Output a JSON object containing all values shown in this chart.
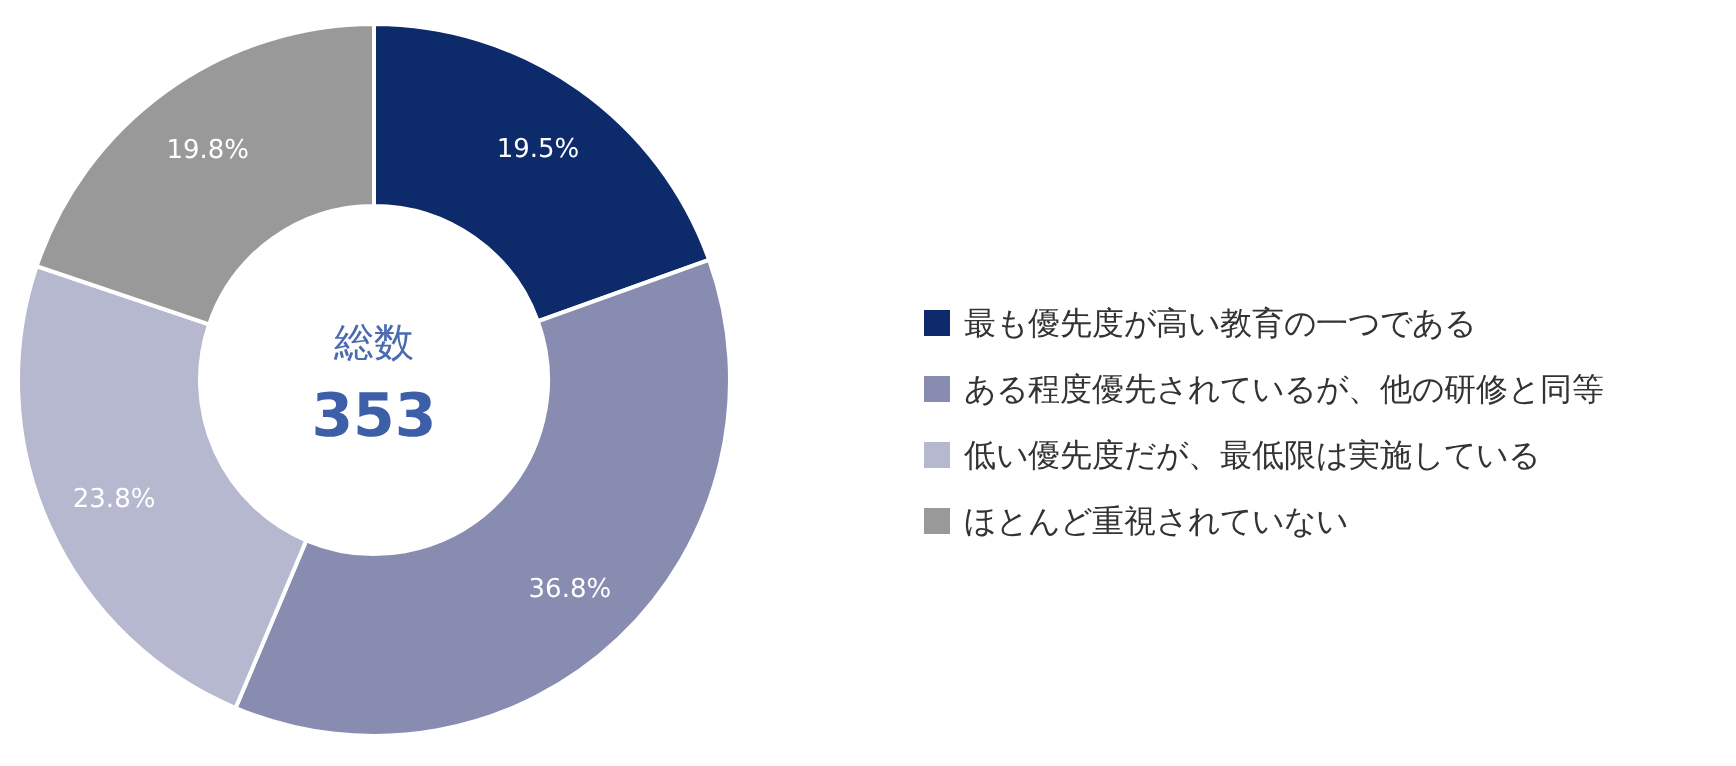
{
  "chart_data": {
    "type": "donut",
    "categories": [
      "最も優先度が高い教育の一つである",
      "ある程度優先されているが、他の研修と同等",
      "低い優先度だが、最低限は実施している",
      "ほとんど重視されていない"
    ],
    "values": [
      19.5,
      36.8,
      23.8,
      19.8
    ],
    "colors": [
      "#0d2a6b",
      "#878cb0",
      "#b5b8cf",
      "#999999"
    ],
    "value_labels": [
      "19.5%",
      "36.8%",
      "23.8%",
      "19.8%"
    ],
    "annotations": [
      "総数",
      "353"
    ],
    "legend": "right"
  }
}
